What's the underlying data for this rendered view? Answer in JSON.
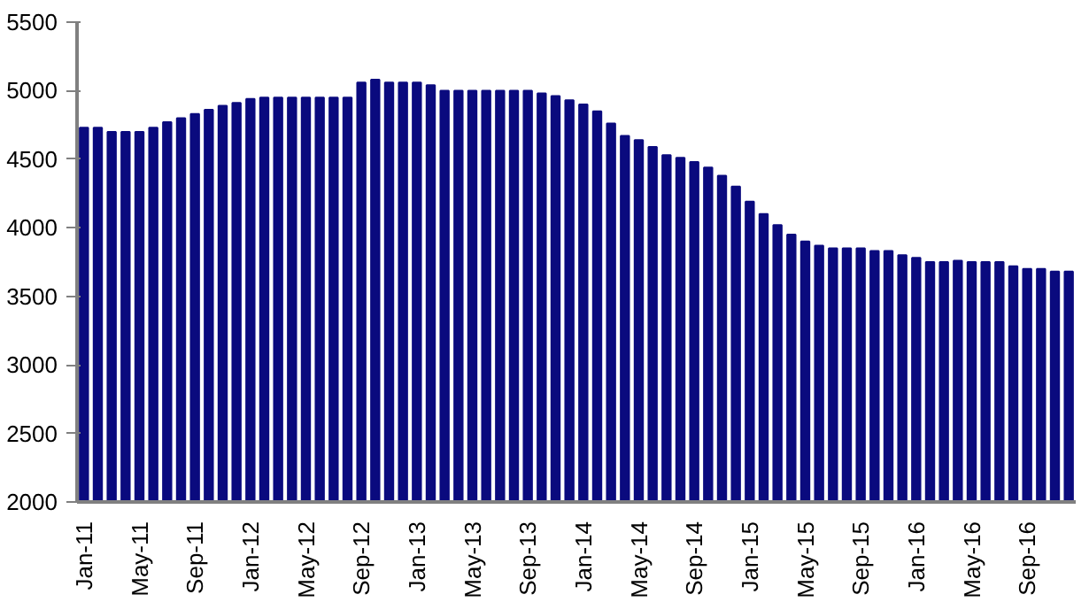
{
  "chart_data": {
    "type": "bar",
    "categories": [
      "Jan-11",
      null,
      null,
      null,
      "May-11",
      null,
      null,
      null,
      "Sep-11",
      null,
      null,
      null,
      "Jan-12",
      null,
      null,
      null,
      "May-12",
      null,
      null,
      null,
      "Sep-12",
      null,
      null,
      null,
      "Jan-13",
      null,
      null,
      null,
      "May-13",
      null,
      null,
      null,
      "Sep-13",
      null,
      null,
      null,
      "Jan-14",
      null,
      null,
      null,
      "May-14",
      null,
      null,
      null,
      "Sep-14",
      null,
      null,
      null,
      "Jan-15",
      null,
      null,
      null,
      "May-15",
      null,
      null,
      null,
      "Sep-15",
      null,
      null,
      null,
      "Jan-16",
      null,
      null,
      null,
      "May-16",
      null,
      null,
      null,
      "Sep-16",
      null,
      null,
      null
    ],
    "values": [
      4730,
      4730,
      4700,
      4700,
      4700,
      4730,
      4770,
      4800,
      4830,
      4860,
      4890,
      4910,
      4940,
      4950,
      4950,
      4950,
      4950,
      4950,
      4950,
      4950,
      5060,
      5080,
      5060,
      5060,
      5060,
      5040,
      5000,
      5000,
      5000,
      5000,
      5000,
      5000,
      5000,
      4980,
      4960,
      4930,
      4900,
      4850,
      4760,
      4670,
      4640,
      4590,
      4530,
      4510,
      4480,
      4440,
      4380,
      4300,
      4190,
      4100,
      4020,
      3950,
      3900,
      3870,
      3850,
      3850,
      3850,
      3830,
      3830,
      3800,
      3780,
      3750,
      3750,
      3760,
      3750,
      3750,
      3750,
      3720,
      3700,
      3700,
      3680,
      3680
    ],
    "color": "#0a0a7e",
    "ylim": [
      2000,
      5500
    ],
    "yticks": [
      2000,
      2500,
      3000,
      3500,
      4000,
      4500,
      5000,
      5500
    ],
    "grid": false
  }
}
